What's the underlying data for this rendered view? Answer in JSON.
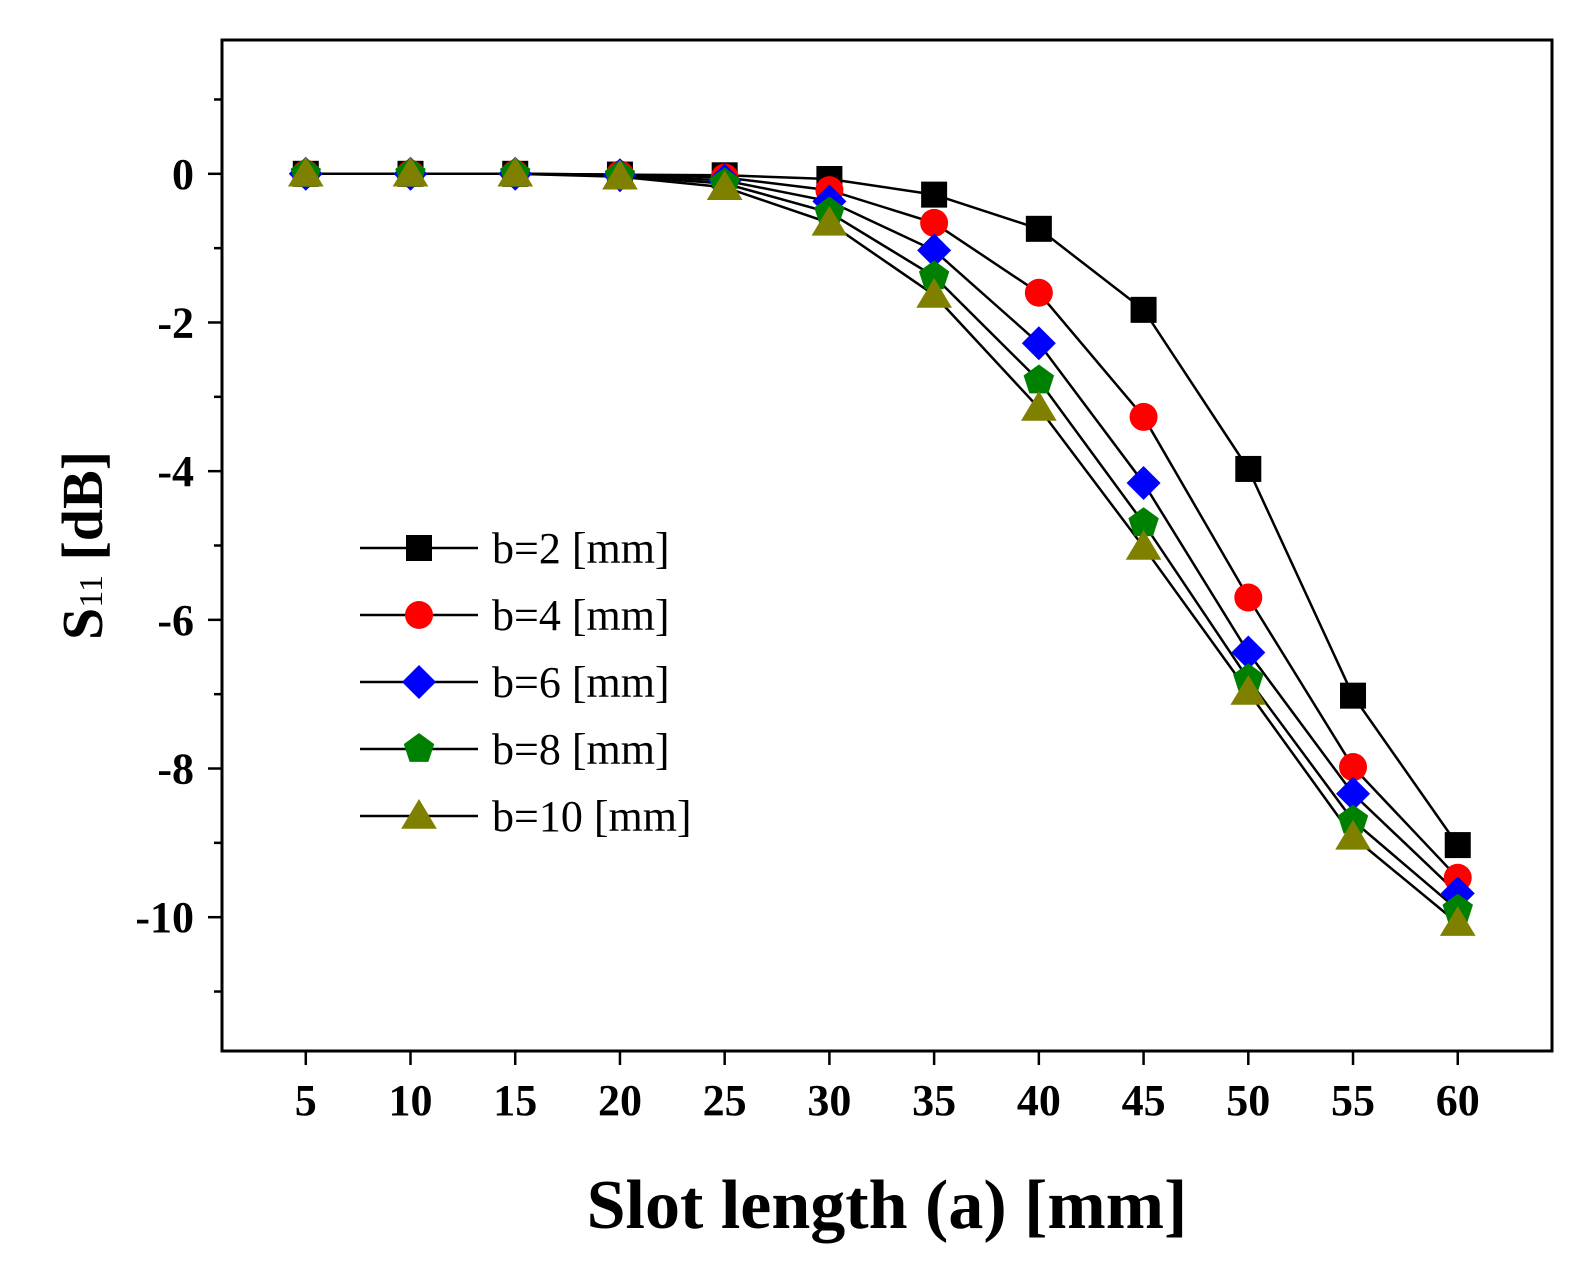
{
  "chart_data": {
    "type": "line",
    "xlabel": "Slot length (a) [mm]",
    "ylabel_main": "S",
    "ylabel_sub": "11",
    "ylabel_unit": " [dB]",
    "x": [
      5,
      10,
      15,
      20,
      25,
      30,
      35,
      40,
      45,
      50,
      55,
      60
    ],
    "xticks": [
      "5",
      "10",
      "15",
      "20",
      "25",
      "30",
      "35",
      "40",
      "45",
      "50",
      "55",
      "60"
    ],
    "xlim": [
      1,
      64.5
    ],
    "ylim": [
      -11.8,
      1.8
    ],
    "yticks": [
      0,
      -2,
      -4,
      -6,
      -8,
      -10
    ],
    "ytick_labels": [
      "0",
      "-2",
      "-4",
      "-6",
      "-8",
      "-10"
    ],
    "grid": false,
    "legend_position": "left-center",
    "series": [
      {
        "name": "b=2 [mm]",
        "marker": "square",
        "color": "#000000",
        "values": [
          0,
          0,
          0,
          -0.01,
          -0.02,
          -0.07,
          -0.28,
          -0.74,
          -1.83,
          -3.97,
          -7.02,
          -9.03
        ]
      },
      {
        "name": "b=4 [mm]",
        "marker": "circle",
        "color": "#ff0000",
        "values": [
          0,
          0,
          0,
          -0.01,
          -0.05,
          -0.22,
          -0.66,
          -1.6,
          -3.27,
          -5.7,
          -7.98,
          -9.47
        ]
      },
      {
        "name": "b=6 [mm]",
        "marker": "diamond",
        "color": "#0000ff",
        "values": [
          0,
          0,
          0,
          -0.02,
          -0.09,
          -0.37,
          -1.03,
          -2.28,
          -4.16,
          -6.44,
          -8.34,
          -9.68
        ]
      },
      {
        "name": "b=8 [mm]",
        "marker": "pentagon",
        "color": "#008000",
        "values": [
          0,
          0,
          0,
          -0.03,
          -0.13,
          -0.52,
          -1.38,
          -2.78,
          -4.7,
          -6.8,
          -8.7,
          -9.9
        ]
      },
      {
        "name": "b=10 [mm]",
        "marker": "triangle",
        "color": "#808000",
        "values": [
          0,
          0,
          0,
          -0.04,
          -0.18,
          -0.66,
          -1.63,
          -3.15,
          -5.02,
          -6.97,
          -8.92,
          -10.08
        ]
      }
    ]
  }
}
